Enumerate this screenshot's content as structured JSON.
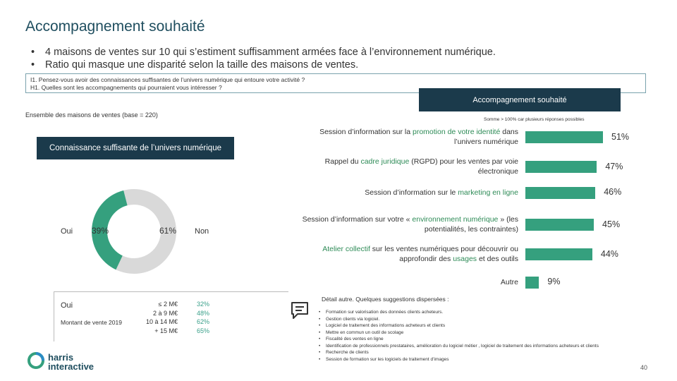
{
  "title": "Accompagnement souhaité",
  "bullets": [
    "4 maisons de ventes sur 10 qui s’estiment suffisamment armées face à l’environnement numérique.",
    "Ratio qui masque une disparité selon la taille des maisons de ventes."
  ],
  "questions": [
    "I1. Pensez-vous avoir des connaissances suffisantes de l’univers numérique qui entoure votre activité ?",
    "H1. Quelles sont les accompagnements qui pourraient vous intéresser ?"
  ],
  "base": "Ensemble des maisons de ventes (base = 220)",
  "accomp_header": "Accompagnement souhaité",
  "multi_note": "Somme > 100% car plusieurs réponses possibles",
  "knowledge_header": "Connaissance suffisante de l’univers numérique",
  "colors": {
    "teal": "#35a07e",
    "grey": "#d9d9d9",
    "navy": "#1b3a4b",
    "green_text": "#3aa08a"
  },
  "donut": {
    "oui_label": "Oui",
    "non_label": "Non",
    "oui_pct": "39%",
    "non_pct": "61%"
  },
  "breakdown": {
    "oui_label": "Oui",
    "row_label": "Montant de vente 2019",
    "sizes": [
      "≤ 2 M€",
      "2 à 9 M€",
      "10 à 14 M€",
      "+ 15 M€"
    ],
    "values": [
      "32%",
      "48%",
      "62%",
      "65%"
    ]
  },
  "chart_data": [
    {
      "type": "pie",
      "title": "Connaissance suffisante de l’univers numérique",
      "categories": [
        "Oui",
        "Non"
      ],
      "values": [
        39,
        61
      ]
    },
    {
      "type": "bar",
      "title": "Accompagnement souhaité",
      "categories": [
        "Session d’information sur la promotion de votre identité dans l’univers numérique",
        "Rappel du cadre juridique (RGPD) pour les ventes par voie électronique",
        "Session d’information sur le marketing en ligne",
        "Session d’information sur votre « environnement numérique » (les potentialités, les contraintes)",
        "Atelier collectif sur les ventes numériques pour découvrir ou approfondir des usages et des outils",
        "Autre"
      ],
      "values": [
        51,
        47,
        46,
        45,
        44,
        9
      ],
      "value_labels": [
        "51%",
        "47%",
        "46%",
        "45%",
        "44%",
        "9%"
      ],
      "xlim": [
        0,
        100
      ]
    }
  ],
  "bar_labels": [
    {
      "pre": "Session d’information sur la ",
      "hl": "promotion de votre identité",
      "post": " dans l’univers numérique"
    },
    {
      "pre": "Rappel du ",
      "hl": "cadre juridique",
      "post": " (RGPD) pour les ventes par voie électronique"
    },
    {
      "pre": "Session d’information sur le ",
      "hl": "marketing en ligne",
      "post": ""
    },
    {
      "pre": "Session d’information sur votre « ",
      "hl": "environnement numérique",
      "post": " » (les potentialités, les contraintes)"
    },
    {
      "pre": "",
      "hl": "Atelier collectif",
      "post": " sur les ventes numériques pour découvrir ou approfondir des ",
      "hl2": "usages",
      "post2": " et des outils"
    },
    {
      "pre": "Autre",
      "hl": "",
      "post": ""
    }
  ],
  "detail_title": "Détail autre. Quelques suggestions dispersées :",
  "suggestions": [
    "Formation sur valorisation des données clients acheteurs.",
    "Gestion clients via logiciel.",
    "Logiciel de traitement des informations acheteurs et clients",
    "Mettre en commun un outil de scolage",
    "Fiscalité des ventes en ligne",
    "Identification de professionnels prestataires, amélioration du logiciel métier , logiciel de traitement des informations acheteurs et clients",
    "Recherche de clients",
    "Session de formation sur les logiciels de traitement d’images"
  ],
  "logo": {
    "line1": "harris",
    "line2": "interactive"
  },
  "page_number": "40"
}
